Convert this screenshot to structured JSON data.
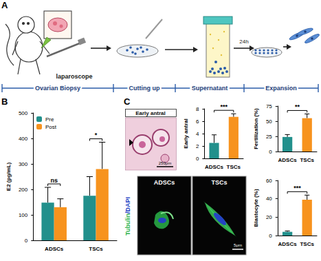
{
  "figure": {
    "panel_labels": [
      "A",
      "B",
      "C"
    ],
    "diagram": {
      "device_label": "laparoscope",
      "stage_note": "24h",
      "stages": [
        "Ovarian Biopsy",
        "Cutting up",
        "Supernatant",
        "Expansion"
      ]
    },
    "histology": {
      "title": "Early antral",
      "scale_bar": "250μm"
    },
    "microscopy": {
      "stain": [
        {
          "text": "Tubulin",
          "color": "#2db34a"
        },
        {
          "text": "/DAPI",
          "color": "#2343c4"
        }
      ],
      "panels": [
        "ADSCs",
        "TSCs"
      ],
      "scale_bar": "5μm"
    }
  },
  "chart_data": [
    {
      "type": "bar",
      "y_label": "E2 (pg/mL)",
      "categories": [
        "ADSCs",
        "TSCs"
      ],
      "series": [
        {
          "name": "Pre",
          "color": "#22908c",
          "values": [
            148,
            175
          ],
          "errors": [
            60,
            75
          ]
        },
        {
          "name": "Post",
          "color": "#f7931e",
          "values": [
            130,
            280
          ],
          "errors": [
            33,
            105
          ]
        }
      ],
      "ylim": [
        0,
        500
      ],
      "yticks": [
        0,
        100,
        200,
        300,
        400,
        500
      ],
      "grid": false,
      "legend": "upper left",
      "annotations": [
        {
          "category": "ADSCs",
          "text": "ns"
        },
        {
          "category": "TSCs",
          "text": "*"
        }
      ]
    },
    {
      "type": "bar",
      "y_label": "Early antral",
      "categories": [
        "ADSCs",
        "TSCs"
      ],
      "values": [
        2.5,
        6.7
      ],
      "errors": [
        1.3,
        0.5
      ],
      "colors": [
        "#22908c",
        "#f7931e"
      ],
      "ylim": [
        0,
        8
      ],
      "yticks": [
        0,
        2,
        4,
        6,
        8
      ],
      "grid": false,
      "annotations": [
        {
          "text": "***"
        }
      ]
    },
    {
      "type": "bar",
      "y_label": "Fertilization (%)",
      "categories": [
        "ADSCs",
        "TSCs"
      ],
      "values": [
        24,
        55
      ],
      "errors": [
        4,
        7
      ],
      "colors": [
        "#22908c",
        "#f7931e"
      ],
      "ylim": [
        0,
        75
      ],
      "yticks": [
        0,
        25,
        50,
        75
      ],
      "grid": false,
      "annotations": [
        {
          "text": "**"
        }
      ]
    },
    {
      "type": "bar",
      "y_label": "Blastocyte (%)",
      "categories": [
        "ADSCs",
        "TSCs"
      ],
      "values": [
        4,
        39
      ],
      "errors": [
        1,
        5
      ],
      "colors": [
        "#22908c",
        "#f7931e"
      ],
      "ylim": [
        0,
        60
      ],
      "yticks": [
        0,
        20,
        40,
        60
      ],
      "grid": false,
      "annotations": [
        {
          "text": "***"
        }
      ]
    }
  ]
}
